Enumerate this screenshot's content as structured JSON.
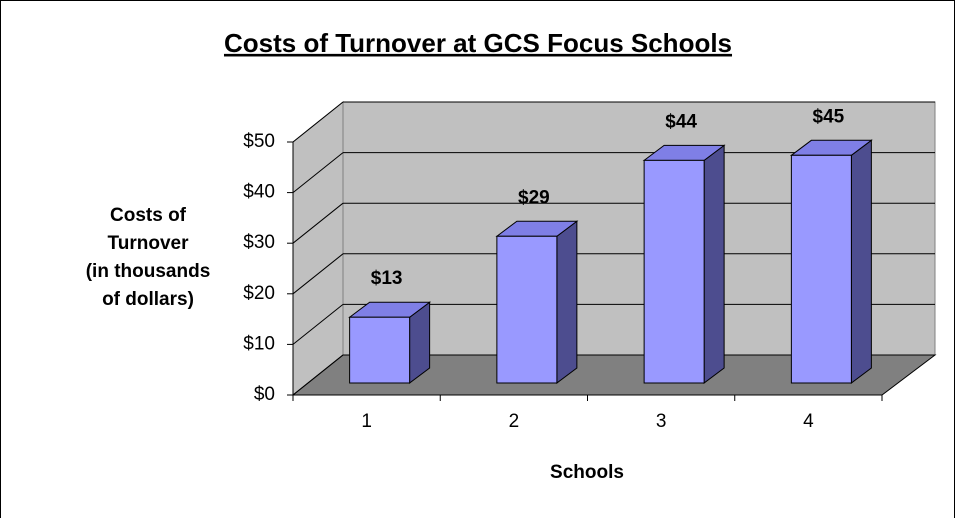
{
  "chart_data": {
    "type": "bar3d",
    "title": "Costs of Turnover at GCS Focus Schools",
    "x_label": "Schools",
    "y_label": [
      "Costs of",
      "Turnover",
      "(in thousands",
      "of dollars)"
    ],
    "categories": [
      "1",
      "2",
      "3",
      "4"
    ],
    "values": [
      13,
      29,
      44,
      45
    ],
    "value_labels": [
      "$13",
      "$29",
      "$44",
      "$45"
    ],
    "color": "#9999ff",
    "ylim": [
      0,
      50
    ],
    "yticks": [
      {
        "value": 0,
        "label": "$0"
      },
      {
        "value": 10,
        "label": "$10"
      },
      {
        "value": 20,
        "label": "$20"
      },
      {
        "value": 30,
        "label": "$30"
      },
      {
        "value": 40,
        "label": "$40"
      },
      {
        "value": 50,
        "label": "$50"
      }
    ],
    "grid": true
  }
}
